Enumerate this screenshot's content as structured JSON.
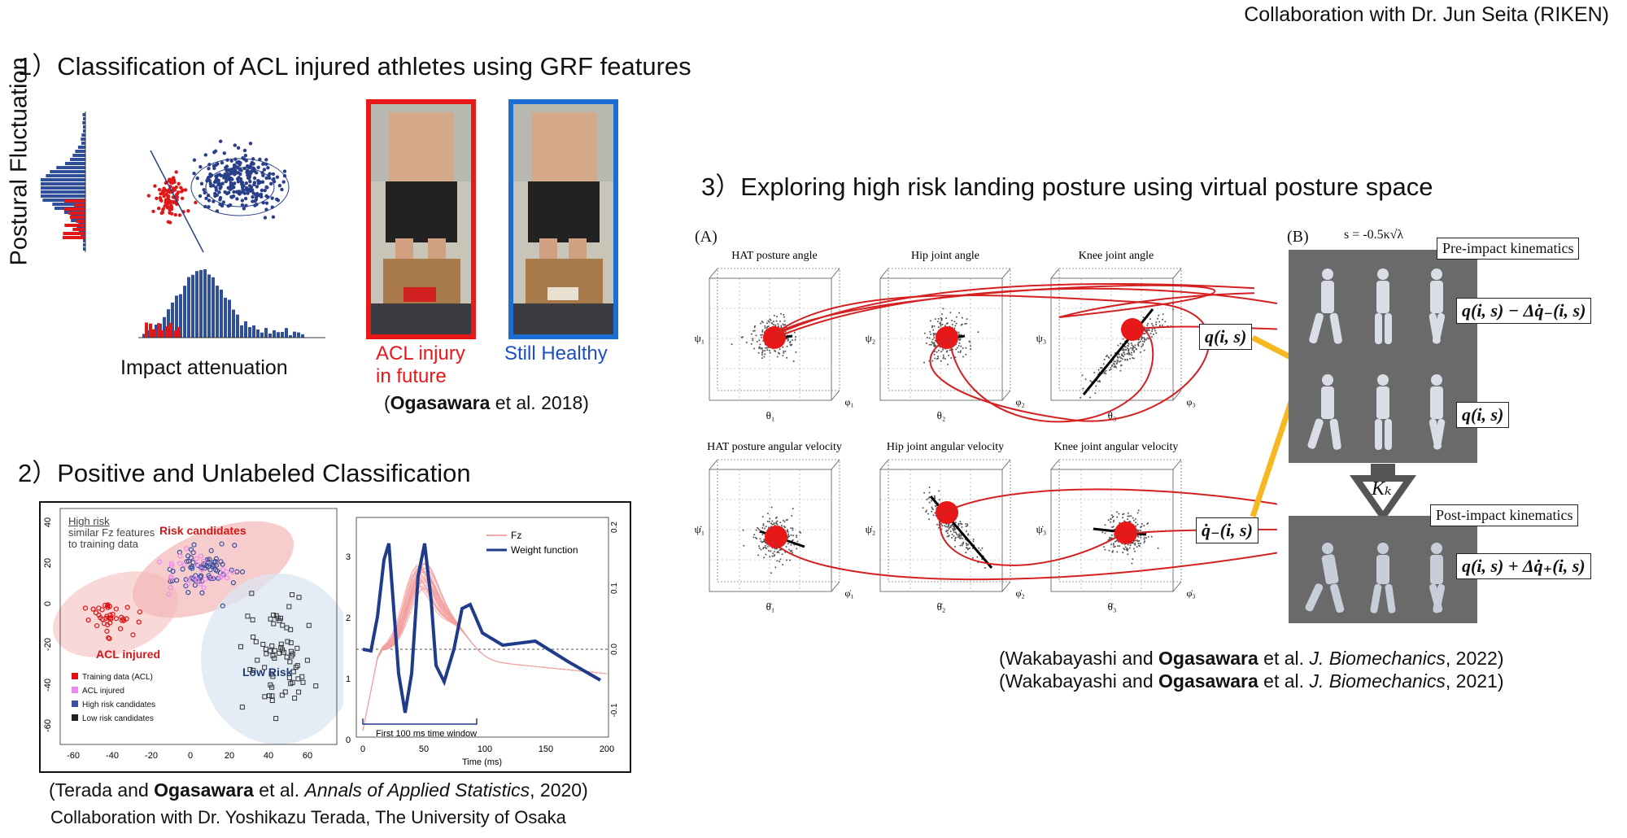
{
  "header": {
    "collab_top": "Collaboration with Dr. Jun Seita (RIKEN)"
  },
  "section1": {
    "title": "1）Classification of ACL injured athletes using GRF features",
    "ylabel": "Postural Fluctuation",
    "xlabel": "Impact attenuation",
    "photo_left_caption": "ACL injury in future",
    "photo_left_caption_l1": "ACL injury",
    "photo_left_caption_l2": "in future",
    "photo_right_caption": "Still Healthy",
    "citation_open": "(",
    "citation_author": "Ogasawara",
    "citation_rest": " et al. 2018)"
  },
  "section2": {
    "title": "2）Positive and Unlabeled Classification",
    "scatter": {
      "note_title": "High risk",
      "note_line2": "similar Fz features",
      "note_line3": "to training data",
      "risk_candidates": "Risk candidates",
      "acl_injured": "ACL injured",
      "low_risk": "Low Risk",
      "legend": [
        "Training data (ACL)",
        "ACL injured",
        "High risk candidates",
        "Low risk candidates"
      ],
      "legend_colors": [
        "#e01010",
        "#ee88ee",
        "#3a4fa0",
        "#222222"
      ],
      "x_ticks": [
        "-60",
        "-40",
        "-20",
        "0",
        "20",
        "40",
        "60"
      ],
      "y_ticks": [
        "40",
        "20",
        "0",
        "-20",
        "-40",
        "-60"
      ]
    },
    "curve": {
      "legend": [
        "Fz",
        "Weight function"
      ],
      "x_ticks": [
        "0",
        "50",
        "100",
        "150",
        "200"
      ],
      "xlabel": "Time (ms)",
      "y_left_ticks": [
        "3",
        "2",
        "1",
        "0"
      ],
      "y_right_ticks": [
        "0.2",
        "0.1",
        "0.0",
        "-0.1"
      ],
      "window_label": "First 100 ms time window"
    },
    "citation_pre": "(Terada and ",
    "citation_author": "Ogasawara",
    "citation_mid": " et al. ",
    "citation_journal": "Annals of Applied Statistics",
    "citation_post": ", 2020)",
    "collab": "Collaboration with Dr. Yoshikazu Terada, The University of Osaka"
  },
  "section3": {
    "title": "3）Exploring high risk landing posture using virtual posture space",
    "panel_a": "(A)",
    "panel_b": "(B)",
    "s_formula": "s = -0.5κ√λ",
    "plots_top": [
      "HAT posture angle",
      "Hip joint angle",
      "Knee joint angle"
    ],
    "plots_bottom": [
      "HAT posture angular velocity",
      "Hip joint angular velocity",
      "Knee joint angular velocity"
    ],
    "axis_top_x": [
      "θ₁",
      "θ₂",
      "θ₃"
    ],
    "axis_top_y": [
      "ψ₁",
      "ψ₂",
      "ψ₃"
    ],
    "axis_top_z": [
      "φ₁",
      "φ₂",
      "φ₃"
    ],
    "axis_bottom_x": [
      "θ̇₁",
      "θ̇₂",
      "θ̇₃"
    ],
    "axis_bottom_y": [
      "ψ̇₁",
      "ψ̇₂",
      "ψ̇₃"
    ],
    "axis_bottom_z": [
      "φ̇₁",
      "φ̇₂",
      "φ̇₃"
    ],
    "q_label": "q(i, s)",
    "qdot_label": "q̇₋(i, s)",
    "pre_impact": "Pre-impact kinematics",
    "post_impact": "Post-impact kinematics",
    "eq_pre": "q(i, s) − Δq̇₋(i, s)",
    "eq_mid": "q(i, s)",
    "eq_post": "q(i, s) + Δq̇₊(i, s)",
    "kk": "Kₖ",
    "citations": [
      {
        "pre": "(Wakabayashi and ",
        "author": "Ogasawara",
        "mid": " et al. ",
        "journal": "J. Biomechanics",
        "post": ", 2022)"
      },
      {
        "pre": "(Wakabayashi and ",
        "author": "Ogasawara",
        "mid": " et al. ",
        "journal": "J. Biomechanics",
        "post": ", 2021)"
      }
    ]
  },
  "colors": {
    "red": "#e02020",
    "blue": "#1b4fc4",
    "arrow_yellow": "#f5b820",
    "grey_panel": "#6a6a6a"
  }
}
